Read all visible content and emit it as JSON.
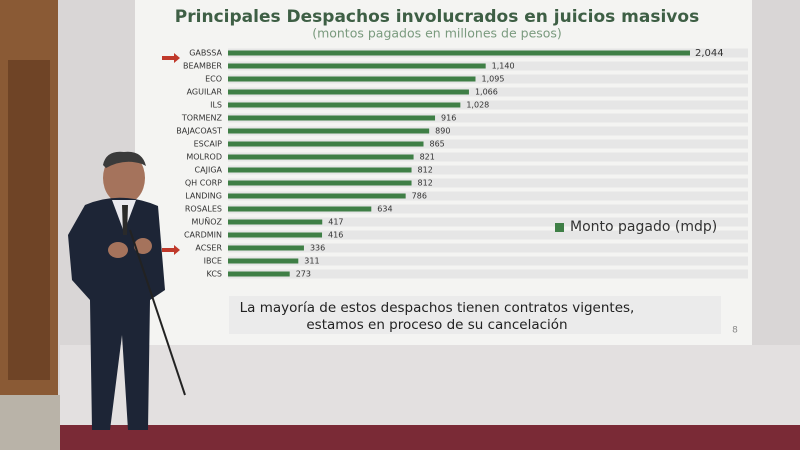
{
  "chart_data": {
    "type": "bar",
    "orientation": "horizontal",
    "title": "Principales Despachos involucrados en juicios masivos",
    "subtitle": "(montos pagados en millones de pesos)",
    "categories": [
      "GABSSA",
      "BEAMBER",
      "ECO",
      "AGUILAR",
      "ILS",
      "TORMENZ",
      "BAJACOAST",
      "ESCAIP",
      "MOLROD",
      "CAJIGA",
      "QH CORP",
      "LANDING",
      "ROSALES",
      "MUÑOZ",
      "CARDMIN",
      "ACSER",
      "IBCE",
      "KCS"
    ],
    "series": [
      {
        "name": "Monto pagado (mdp)",
        "color": "#3f7f46",
        "values": [
          2044,
          1140,
          1095,
          1066,
          1028,
          916,
          890,
          865,
          821,
          812,
          812,
          786,
          634,
          417,
          416,
          336,
          311,
          273
        ],
        "value_labels": [
          "2,044",
          "1,140",
          "1,095",
          "1,066",
          "1,028",
          "916",
          "890",
          "865",
          "821",
          "812",
          "812",
          "786",
          "634",
          "417",
          "416",
          "336",
          "311",
          "273"
        ]
      }
    ],
    "note": [
      "La mayoría de estos despachos tienen contratos vigentes,",
      "estamos en proceso de su cancelación"
    ],
    "page_number": "8"
  }
}
